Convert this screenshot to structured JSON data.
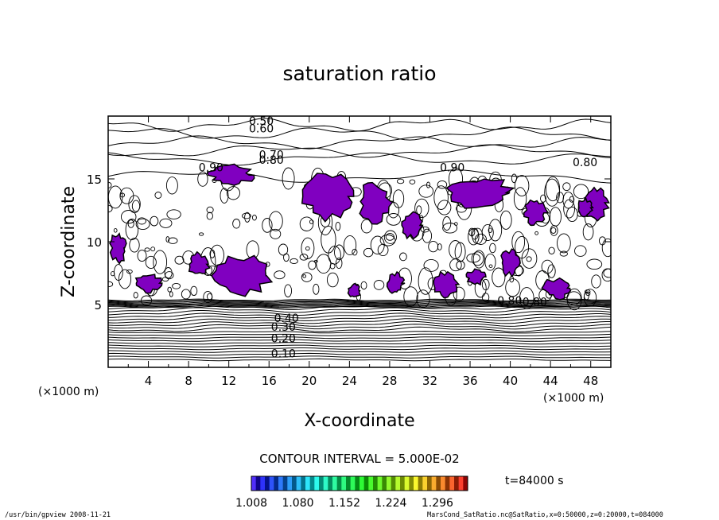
{
  "chart_data": {
    "type": "contour",
    "title": "saturation ratio",
    "xlabel": "X-coordinate",
    "ylabel": "Z-coordinate",
    "x_unit": "(×1000 m)",
    "y_unit": "(×1000 m)",
    "xlim": [
      0,
      50
    ],
    "ylim": [
      0,
      20
    ],
    "x_ticks": [
      "4",
      "8",
      "12",
      "16",
      "20",
      "24",
      "28",
      "32",
      "36",
      "40",
      "44",
      "48"
    ],
    "y_ticks": [
      "5",
      "10",
      "15"
    ],
    "contour_interval_text": "CONTOUR INTERVAL = 5.000E-02",
    "contour_labels": [
      "0.10",
      "0.20",
      "0.30",
      "0.40",
      "0.50",
      "0.60",
      "0.70",
      "0.80",
      "0.90"
    ],
    "colorbar_labels": [
      "1.008",
      "1.080",
      "1.152",
      "1.224",
      "1.296"
    ],
    "colorbar_range": [
      1.008,
      1.296
    ],
    "fill_color": "#8000c0",
    "time_label": "t=84000 s",
    "footer_left": "/usr/bin/gpview   2008-11-21",
    "footer_right": "MarsCond_SatRatio.nc@SatRatio,x=0:50000,z=0:20000,t=084000"
  }
}
